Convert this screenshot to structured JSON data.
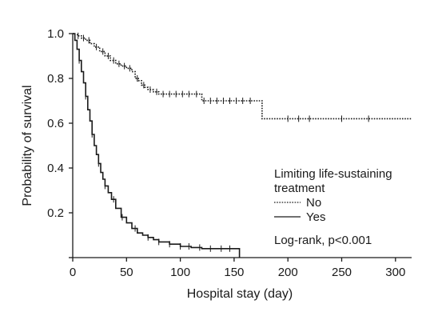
{
  "chart_data": {
    "type": "line",
    "subtype": "kaplan-meier step",
    "title": "",
    "xlabel": "Hospital stay (day)",
    "ylabel": "Probability of survival",
    "xlim": [
      0,
      315
    ],
    "ylim": [
      0,
      1.0
    ],
    "x_ticks": [
      0,
      50,
      100,
      150,
      200,
      250,
      300
    ],
    "x_tick_labels": [
      "0",
      "50",
      "100",
      "150",
      "200",
      "250",
      "300"
    ],
    "y_ticks": [
      0,
      0.2,
      0.4,
      0.6,
      0.8,
      1.0
    ],
    "y_tick_labels": [
      "",
      "0.2",
      "0.4",
      "0.6",
      "0.8",
      "1.0"
    ],
    "grid": false,
    "legend": {
      "title_line1": "Limiting life-sustaining",
      "title_line2": "treatment",
      "position": "bottom-right",
      "entries": [
        "No",
        "Yes"
      ]
    },
    "annotation": "Log-rank, p<0.001",
    "series": [
      {
        "name": "No",
        "line_style": "dotted",
        "color": "#1a1a1a",
        "x": [
          0,
          2,
          5,
          8,
          12,
          16,
          20,
          25,
          30,
          35,
          40,
          45,
          50,
          55,
          58,
          61,
          64,
          67,
          70,
          75,
          80,
          90,
          100,
          110,
          120,
          130,
          140,
          150,
          160,
          170,
          176,
          200,
          250,
          315
        ],
        "y": [
          1.0,
          0.995,
          0.99,
          0.98,
          0.97,
          0.955,
          0.94,
          0.92,
          0.9,
          0.88,
          0.865,
          0.855,
          0.845,
          0.83,
          0.8,
          0.79,
          0.77,
          0.76,
          0.75,
          0.74,
          0.73,
          0.73,
          0.73,
          0.73,
          0.7,
          0.7,
          0.7,
          0.7,
          0.7,
          0.7,
          0.62,
          0.62,
          0.62,
          0.62
        ],
        "censored_x": [
          5,
          10,
          15,
          22,
          28,
          33,
          38,
          43,
          48,
          53,
          60,
          66,
          72,
          78,
          84,
          90,
          96,
          102,
          108,
          115,
          122,
          128,
          134,
          140,
          146,
          152,
          158,
          165,
          200,
          210,
          220,
          250,
          275
        ]
      },
      {
        "name": "Yes",
        "line_style": "solid",
        "color": "#1a1a1a",
        "x": [
          0,
          2,
          4,
          6,
          8,
          10,
          12,
          14,
          16,
          18,
          20,
          22,
          24,
          26,
          28,
          30,
          33,
          36,
          40,
          45,
          50,
          55,
          60,
          65,
          70,
          75,
          80,
          90,
          100,
          110,
          120,
          130,
          140,
          150,
          155
        ],
        "y": [
          1.0,
          0.97,
          0.93,
          0.88,
          0.83,
          0.78,
          0.72,
          0.66,
          0.61,
          0.55,
          0.5,
          0.46,
          0.42,
          0.38,
          0.35,
          0.32,
          0.29,
          0.26,
          0.22,
          0.18,
          0.155,
          0.13,
          0.11,
          0.1,
          0.09,
          0.08,
          0.07,
          0.06,
          0.05,
          0.045,
          0.04,
          0.04,
          0.04,
          0.04,
          0.0
        ],
        "censored_x": [
          6,
          12,
          18,
          24,
          30,
          38,
          46,
          58,
          70,
          80,
          90,
          100,
          108,
          118,
          128,
          138,
          146
        ]
      }
    ]
  }
}
